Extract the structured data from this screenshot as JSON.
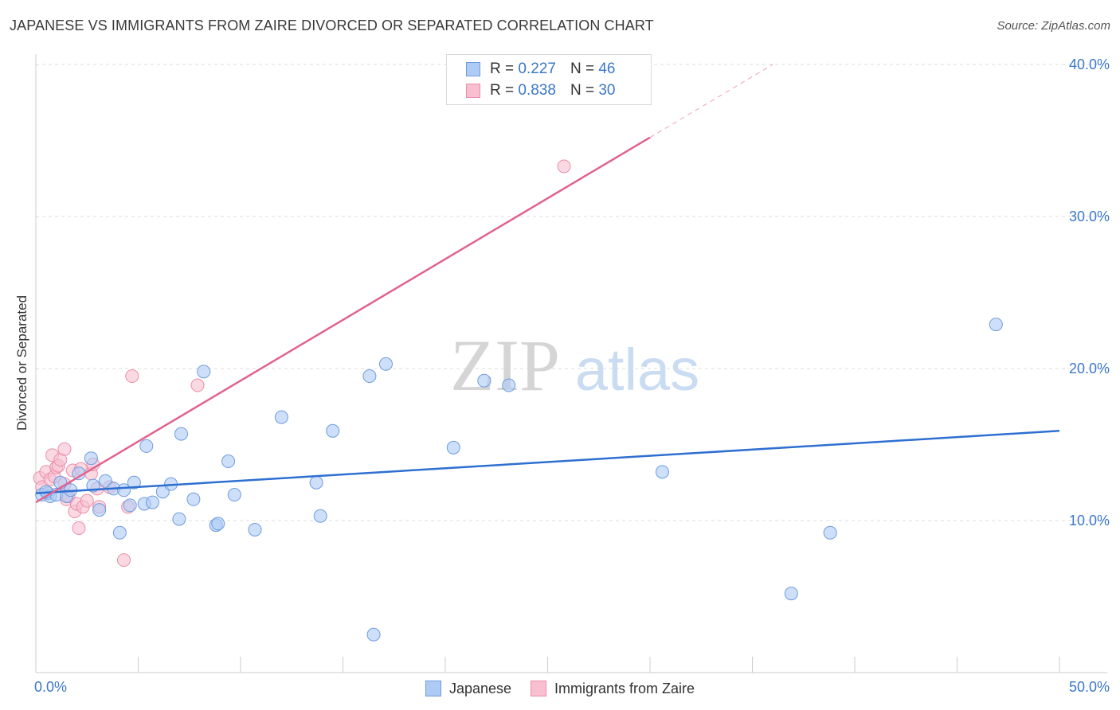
{
  "title": "JAPANESE VS IMMIGRANTS FROM ZAIRE DIVORCED OR SEPARATED CORRELATION CHART",
  "source": "Source: ZipAtlas.com",
  "watermark": {
    "zip": "ZIP",
    "atlas": "atlas"
  },
  "legend_top": {
    "rows": [
      {
        "r_label": "R =",
        "r_value": "0.227",
        "n_label": "N =",
        "n_value": "46"
      },
      {
        "r_label": "R =",
        "r_value": "0.838",
        "n_label": "N =",
        "n_value": "30"
      }
    ]
  },
  "legend_bottom": {
    "series_1": "Japanese",
    "series_2": "Immigrants from Zaire"
  },
  "colors": {
    "blue_fill": "#aecbf5",
    "blue_stroke": "#6e9bde",
    "blue_line": "#2e6fd1",
    "pink_fill": "#f8bfd0",
    "pink_stroke": "#ea8eab",
    "pink_line": "#e0628d",
    "tick_text": "#3b78c8",
    "grid": "#dddddd"
  },
  "chart_data": {
    "type": "scatter",
    "title": "JAPANESE VS IMMIGRANTS FROM ZAIRE DIVORCED OR SEPARATED CORRELATION CHART",
    "xlabel": "",
    "ylabel": "Divorced or Separated",
    "xlim": [
      0,
      50
    ],
    "ylim": [
      0,
      40
    ],
    "x_tick_labels": {
      "min": "0.0%",
      "max": "50.0%"
    },
    "y_ticks": [
      10,
      20,
      30,
      40
    ],
    "y_tick_labels": [
      "10.0%",
      "20.0%",
      "30.0%",
      "40.0%"
    ],
    "legend_position": "top-center",
    "series": [
      {
        "name": "Japanese",
        "r": 0.227,
        "n": 46,
        "trend": {
          "x0": 0,
          "y0": 11.8,
          "x1": 50,
          "y1": 15.9
        },
        "points": [
          [
            0.3,
            11.7
          ],
          [
            0.6,
            11.8
          ],
          [
            0.7,
            11.6
          ],
          [
            1.0,
            11.7
          ],
          [
            1.2,
            12.5
          ],
          [
            1.5,
            11.6
          ],
          [
            1.7,
            12.0
          ],
          [
            2.1,
            13.1
          ],
          [
            2.7,
            14.1
          ],
          [
            2.8,
            12.3
          ],
          [
            3.1,
            10.7
          ],
          [
            3.4,
            12.6
          ],
          [
            3.8,
            12.1
          ],
          [
            4.1,
            9.2
          ],
          [
            4.3,
            12.0
          ],
          [
            4.6,
            11.0
          ],
          [
            4.8,
            12.5
          ],
          [
            5.3,
            11.1
          ],
          [
            5.4,
            14.9
          ],
          [
            5.7,
            11.2
          ],
          [
            6.2,
            11.9
          ],
          [
            6.6,
            12.4
          ],
          [
            7.0,
            10.1
          ],
          [
            7.1,
            15.7
          ],
          [
            7.7,
            11.4
          ],
          [
            8.2,
            19.8
          ],
          [
            8.8,
            9.7
          ],
          [
            8.9,
            9.8
          ],
          [
            9.4,
            13.9
          ],
          [
            9.7,
            11.7
          ],
          [
            10.7,
            9.4
          ],
          [
            12.0,
            16.8
          ],
          [
            13.7,
            12.5
          ],
          [
            13.9,
            10.3
          ],
          [
            14.5,
            15.9
          ],
          [
            16.3,
            19.5
          ],
          [
            16.5,
            2.5
          ],
          [
            17.1,
            20.3
          ],
          [
            20.4,
            14.8
          ],
          [
            21.9,
            19.2
          ],
          [
            23.1,
            18.9
          ],
          [
            30.6,
            13.2
          ],
          [
            36.9,
            5.2
          ],
          [
            38.8,
            9.2
          ],
          [
            46.9,
            22.9
          ],
          [
            0.5,
            11.9
          ]
        ]
      },
      {
        "name": "Immigrants from Zaire",
        "r": 0.838,
        "n": 30,
        "trend": {
          "x0": 0,
          "y0": 11.2,
          "x1": 30,
          "y1": 35.2
        },
        "trend_dashed_to": {
          "x": 36,
          "y": 40.0
        },
        "points": [
          [
            0.2,
            12.8
          ],
          [
            0.3,
            12.2
          ],
          [
            0.5,
            13.2
          ],
          [
            0.7,
            12.7
          ],
          [
            0.8,
            14.3
          ],
          [
            0.9,
            12.9
          ],
          [
            1.0,
            13.5
          ],
          [
            1.1,
            13.6
          ],
          [
            1.2,
            14.0
          ],
          [
            1.4,
            12.4
          ],
          [
            1.4,
            14.7
          ],
          [
            1.5,
            11.4
          ],
          [
            1.6,
            11.6
          ],
          [
            1.8,
            13.3
          ],
          [
            1.9,
            10.6
          ],
          [
            2.0,
            11.1
          ],
          [
            2.1,
            9.5
          ],
          [
            2.2,
            13.4
          ],
          [
            2.3,
            10.9
          ],
          [
            2.5,
            11.3
          ],
          [
            2.7,
            13.1
          ],
          [
            2.8,
            13.7
          ],
          [
            3.0,
            12.1
          ],
          [
            3.1,
            10.9
          ],
          [
            3.6,
            12.2
          ],
          [
            4.3,
            7.4
          ],
          [
            4.5,
            10.9
          ],
          [
            4.7,
            19.5
          ],
          [
            7.9,
            18.9
          ],
          [
            25.8,
            33.3
          ]
        ]
      }
    ]
  }
}
